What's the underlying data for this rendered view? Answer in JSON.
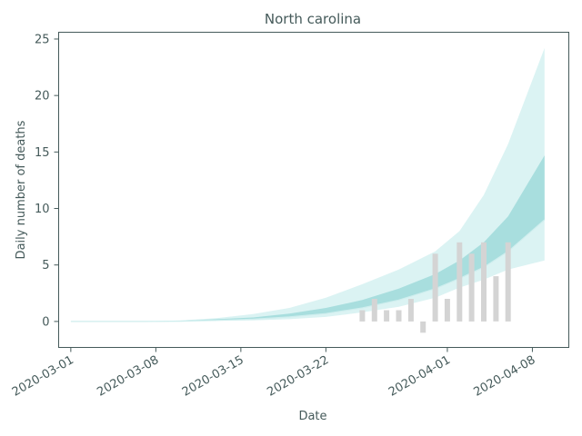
{
  "chart_data": {
    "type": "area",
    "title": "North carolina",
    "xlabel": "Date",
    "ylabel": "Daily number of deaths",
    "ylim": [
      -2.3,
      25.6
    ],
    "xlim": [
      "2020-02-29",
      "2020-04-11"
    ],
    "yticks": [
      0,
      5,
      10,
      15,
      20,
      25
    ],
    "xticks": [
      "2020-03-01",
      "2020-03-08",
      "2020-03-15",
      "2020-03-22",
      "2020-04-01",
      "2020-04-08"
    ],
    "grid": false,
    "colors": {
      "outer_band": "#dbf3f3",
      "inner_band": "#a8dede",
      "bars": "#d4d4d4",
      "text": "#455a5a",
      "median_line": "#cfeeee"
    },
    "bands": {
      "dates": [
        "2020-03-01",
        "2020-03-04",
        "2020-03-07",
        "2020-03-10",
        "2020-03-13",
        "2020-03-16",
        "2020-03-19",
        "2020-03-22",
        "2020-03-25",
        "2020-03-28",
        "2020-03-31",
        "2020-04-02",
        "2020-04-04",
        "2020-04-06",
        "2020-04-09"
      ],
      "outer_low": [
        0,
        0,
        0,
        0,
        0.05,
        0.1,
        0.2,
        0.4,
        0.8,
        1.3,
        2.1,
        3.0,
        3.7,
        4.6,
        5.4
      ],
      "outer_high": [
        0,
        0,
        0,
        0.1,
        0.3,
        0.65,
        1.2,
        2.1,
        3.3,
        4.6,
        6.2,
        8.0,
        11.2,
        15.7,
        24.2
      ],
      "inner_low": [
        0,
        0,
        0,
        0.02,
        0.1,
        0.2,
        0.4,
        0.7,
        1.2,
        1.9,
        2.9,
        3.8,
        4.8,
        6.2,
        9.0
      ],
      "inner_high": [
        0,
        0,
        0,
        0.05,
        0.2,
        0.35,
        0.7,
        1.2,
        1.9,
        2.9,
        4.2,
        5.4,
        7.0,
        9.3,
        14.7
      ]
    },
    "bars": {
      "dates": [
        "2020-03-25",
        "2020-03-26",
        "2020-03-27",
        "2020-03-28",
        "2020-03-29",
        "2020-03-30",
        "2020-03-31",
        "2020-04-01",
        "2020-04-02",
        "2020-04-03",
        "2020-04-04",
        "2020-04-05",
        "2020-04-06"
      ],
      "values": [
        1,
        2,
        1,
        1,
        2,
        -1,
        6,
        2,
        7,
        6,
        7,
        4,
        7
      ]
    }
  }
}
